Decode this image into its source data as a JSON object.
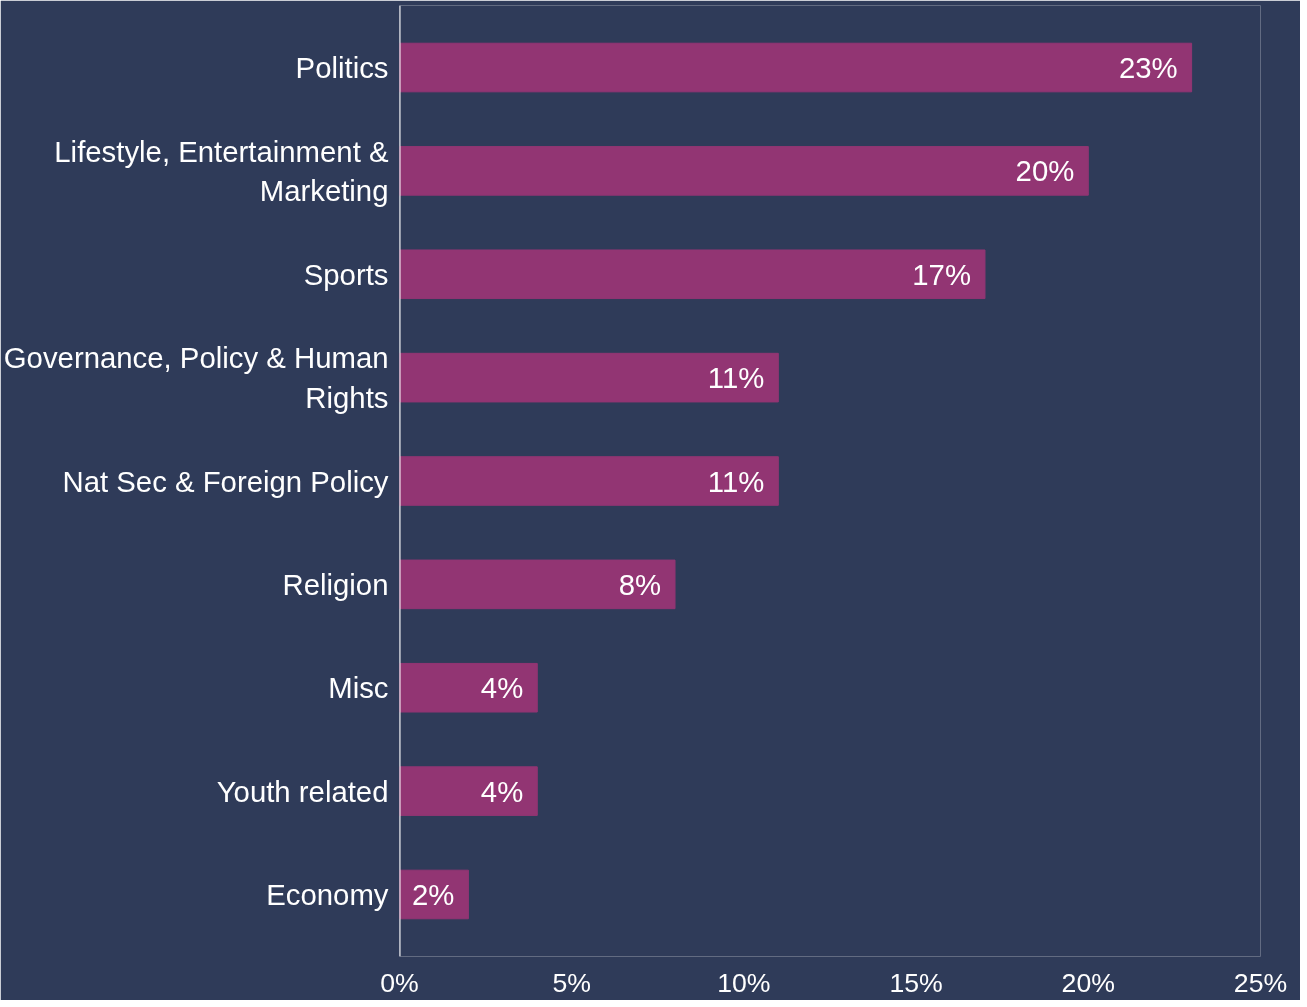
{
  "chart_data": {
    "type": "bar",
    "orientation": "horizontal",
    "categories": [
      "Politics",
      "Lifestyle, Entertainment & Marketing",
      "Sports",
      "Governance, Policy & Human Rights",
      "Nat Sec & Foreign Policy",
      "Religion",
      "Misc",
      "Youth related",
      "Economy"
    ],
    "values": [
      23,
      20,
      17,
      11,
      11,
      8,
      4,
      4,
      2
    ],
    "color": "#923573",
    "xlim": [
      0,
      25
    ],
    "xticks": [
      {
        "value": 0,
        "label": "0%"
      },
      {
        "value": 5,
        "label": "5%"
      },
      {
        "value": 10,
        "label": "10%"
      },
      {
        "value": 15,
        "label": "15%"
      },
      {
        "value": 20,
        "label": "20%"
      },
      {
        "value": 25,
        "label": "25%"
      }
    ],
    "value_labels": [
      "23%",
      "20%",
      "17%",
      "11%",
      "11%",
      "8%",
      "4%",
      "4%",
      "2%"
    ],
    "grid": false
  }
}
